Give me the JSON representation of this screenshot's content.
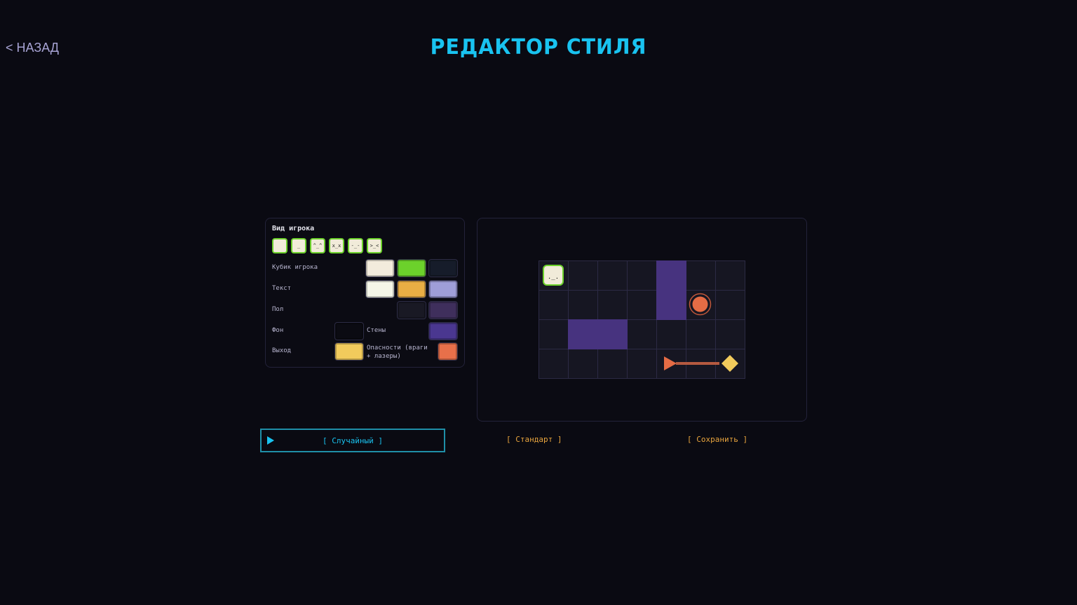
{
  "header": {
    "back_label": "< НАЗАД",
    "title": "РЕДАКТОР СТИЛЯ"
  },
  "style_panel": {
    "player_look_label": "Вид игрока",
    "faces": [
      "",
      "_",
      "^_^",
      "x_x",
      "-_-",
      ">_<"
    ],
    "rows": [
      {
        "label": "Кубик игрока",
        "colors": [
          "#f3ecdc",
          "#6cd12b",
          "#161c2a"
        ]
      },
      {
        "label": "Текст",
        "colors": [
          "#f5f6e8",
          "#e9ae44",
          "#9f9ed8"
        ]
      },
      {
        "label": "Пол",
        "colors": [
          "#191924",
          "#3f2f5c"
        ]
      }
    ],
    "background": {
      "label": "Фон",
      "color": "#0b0b12"
    },
    "walls": {
      "label": "Стены",
      "color": "#4a3790"
    },
    "exit": {
      "label": "Выход",
      "color": "#f2cb5c"
    },
    "hazards": {
      "label": "Опасности (враги + лазеры)",
      "color": "#e8704a"
    }
  },
  "preview": {
    "cols": 7,
    "rows": 4,
    "walls": [
      [
        4,
        0
      ],
      [
        4,
        1
      ],
      [
        1,
        2
      ],
      [
        2,
        2
      ]
    ],
    "player": [
      0,
      0
    ],
    "player_face": "._.",
    "enemy": [
      5,
      1
    ],
    "laser_emitter": [
      4,
      3
    ],
    "exit": [
      6,
      3
    ]
  },
  "buttons": {
    "random": "[ Случайный ]",
    "standard": "[ Стандарт ]",
    "save": "[ Сохранить ]"
  },
  "colors": {
    "accent": "#19c3f0",
    "secondary": "#e9a53e"
  }
}
